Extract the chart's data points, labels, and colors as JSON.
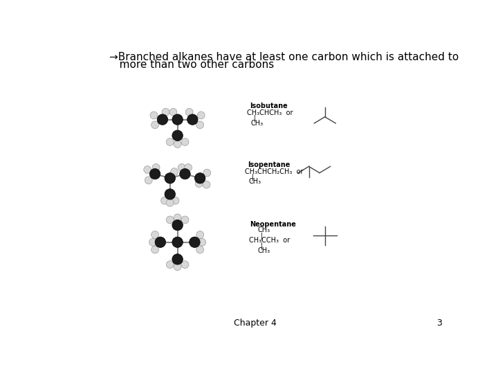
{
  "background_color": "#ffffff",
  "title_line1": "→Branched alkanes have at least one carbon which is attached to",
  "title_line2": "   more than two other carbons",
  "title_fontsize": 11,
  "title_fontweight": "normal",
  "footer_chapter": "Chapter 4",
  "footer_page": "3",
  "isobutane_label": "Isobutane",
  "isobutane_formula": "CH₃CHCH₃  or",
  "isobutane_branch_pipe": "|",
  "isobutane_branch_ch3": "CH₃",
  "isopentane_label": "Isopentane",
  "isopentane_formula": "CH₃CHCH₂CH₃  or",
  "isopentane_branch_pipe": "|",
  "isopentane_branch_ch3": "CH₃",
  "neopentane_label": "Neopentane",
  "neopentane_ch3_top": "CH₃",
  "neopentane_mid": "CH₃CCH₃  or",
  "neopentane_ch3_bot": "CH₃",
  "dark_atom_color": "#1c1c1c",
  "light_atom_color": "#d8d8d8",
  "bond_color": "#888888",
  "text_color": "#000000",
  "formula_fontsize": 7,
  "label_fontsize": 7
}
